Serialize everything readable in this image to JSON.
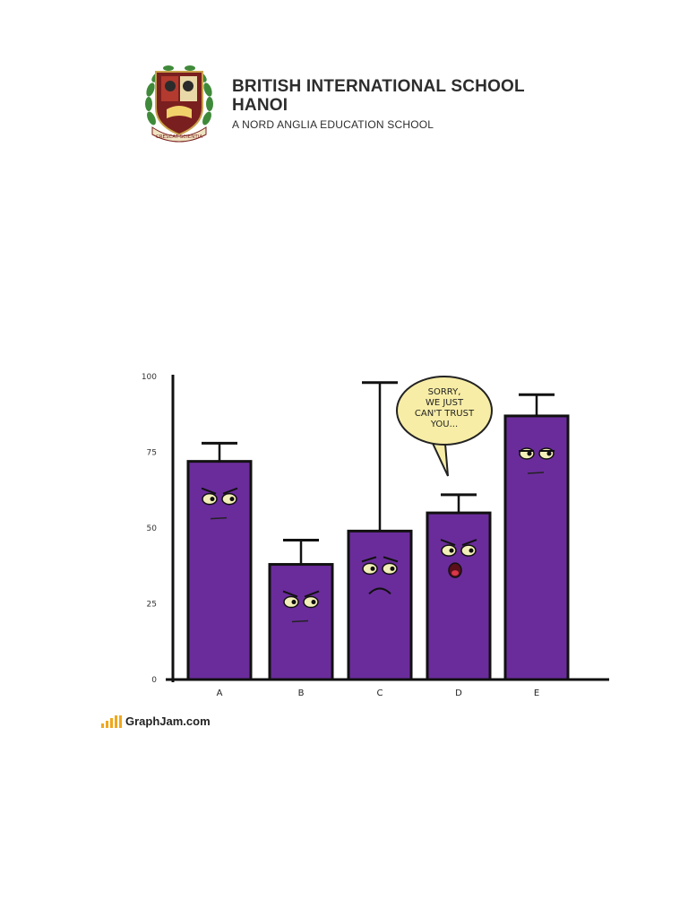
{
  "header": {
    "title_line1": "BRITISH INTERNATIONAL SCHOOL",
    "title_line2": "HANOI",
    "subtitle": "A NORD ANGLIA EDUCATION SCHOOL",
    "crest_motto": "CRESCAT SCIENTIA",
    "brand_color": "#7a1f1f"
  },
  "chart_data": {
    "type": "bar",
    "categories": [
      "A",
      "B",
      "C",
      "D",
      "E"
    ],
    "values": [
      72,
      38,
      49,
      55,
      87
    ],
    "error_upper": [
      78,
      46,
      98,
      61,
      94
    ],
    "yticks": [
      "0",
      "25",
      "50",
      "75",
      "100"
    ],
    "ylim": [
      0,
      100
    ],
    "bar_color": "#6a2c9b",
    "annotation": "SORRY,\nWE JUST\nCAN'T TRUST\nYOU..."
  },
  "footer": {
    "source": "GraphJam.com",
    "accent_color": "#f0a81e"
  }
}
